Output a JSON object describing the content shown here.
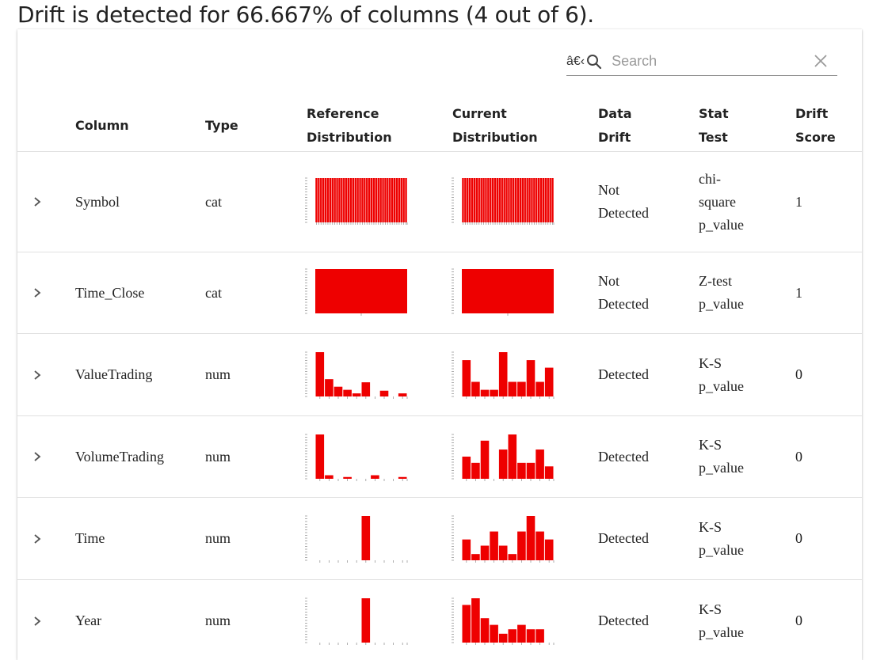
{
  "headline": "Drift is detected for 66.667% of columns (4 out of 6).",
  "search": {
    "prefix": "â€‹",
    "placeholder": "Search"
  },
  "headers": {
    "column": "Column",
    "type": "Type",
    "ref_line1": "Reference",
    "ref_line2": "Distribution",
    "cur_line1": "Current",
    "cur_line2": "Distribution",
    "drift_line1": "Data",
    "drift_line2": "Drift",
    "stat_line1": "Stat",
    "stat_line2": "Test",
    "score_line1": "Drift",
    "score_line2": "Score"
  },
  "accent_color": "#ee0000",
  "rows": [
    {
      "column": "Symbol",
      "type": "cat",
      "drift_l1": "Not",
      "drift_l2": "Detected",
      "stat_l1": "chi-",
      "stat_l2": "square",
      "stat_l3": "p_value",
      "score": "1",
      "ref": {
        "kind": "bars-dense",
        "values": [
          1,
          1,
          1,
          1,
          1,
          1,
          1,
          1,
          1,
          1,
          1,
          1,
          1,
          1,
          1,
          1,
          1,
          1,
          1,
          1,
          1,
          1,
          1,
          1,
          1,
          1,
          1,
          1,
          1,
          1,
          1,
          1,
          1,
          1,
          1,
          1,
          1,
          1,
          1,
          1
        ]
      },
      "cur": {
        "kind": "bars-dense",
        "values": [
          1,
          1,
          1,
          1,
          1,
          1,
          1,
          1,
          1,
          1,
          1,
          1,
          1,
          1,
          1,
          1,
          1,
          1,
          1,
          1,
          1,
          1,
          1,
          1,
          1,
          1,
          1,
          1,
          1,
          1,
          1,
          1,
          1,
          1,
          1,
          1,
          1,
          1,
          1,
          1
        ]
      }
    },
    {
      "column": "Time_Close",
      "type": "cat",
      "drift_l1": "Not",
      "drift_l2": "Detected",
      "stat_l1": "Z-test",
      "stat_l2": "p_value",
      "stat_l3": "",
      "score": "1",
      "ref": {
        "kind": "block",
        "values": [
          1
        ]
      },
      "cur": {
        "kind": "block",
        "values": [
          1
        ]
      }
    },
    {
      "column": "ValueTrading",
      "type": "num",
      "drift_l1": "Detected",
      "drift_l2": "",
      "stat_l1": "K-S",
      "stat_l2": "p_value",
      "stat_l3": "",
      "score": "0",
      "ref": {
        "kind": "hist",
        "values": [
          1.0,
          0.39,
          0.22,
          0.15,
          0.07,
          0.32,
          0,
          0.13,
          0,
          0.07
        ]
      },
      "cur": {
        "kind": "hist",
        "values": [
          0.82,
          0.33,
          0.15,
          0.15,
          1.0,
          0.33,
          0.33,
          0.82,
          0.33,
          0.65
        ]
      }
    },
    {
      "column": "VolumeTrading",
      "type": "num",
      "drift_l1": "Detected",
      "drift_l2": "",
      "stat_l1": "K-S",
      "stat_l2": "p_value",
      "stat_l3": "",
      "score": "0",
      "ref": {
        "kind": "hist",
        "values": [
          1.0,
          0.08,
          0,
          0.04,
          0,
          0,
          0.08,
          0,
          0,
          0.04
        ]
      },
      "cur": {
        "kind": "hist",
        "values": [
          0.5,
          0.36,
          0.86,
          0,
          0.66,
          1.0,
          0.36,
          0.36,
          0.66,
          0.28
        ]
      }
    },
    {
      "column": "Time",
      "type": "num",
      "drift_l1": "Detected",
      "drift_l2": "",
      "stat_l1": "K-S",
      "stat_l2": "p_value",
      "stat_l3": "",
      "score": "0",
      "ref": {
        "kind": "hist",
        "values": [
          0,
          0,
          0,
          0,
          0,
          1.0,
          0,
          0,
          0,
          0
        ]
      },
      "cur": {
        "kind": "hist",
        "values": [
          0.47,
          0.14,
          0.33,
          0.65,
          0.33,
          0.14,
          0.65,
          1.0,
          0.65,
          0.47
        ]
      }
    },
    {
      "column": "Year",
      "type": "num",
      "drift_l1": "Detected",
      "drift_l2": "",
      "stat_l1": "K-S",
      "stat_l2": "p_value",
      "stat_l3": "",
      "score": "0",
      "ref": {
        "kind": "hist",
        "values": [
          0,
          0,
          0,
          0,
          0,
          1.0,
          0,
          0,
          0,
          0
        ]
      },
      "cur": {
        "kind": "hist",
        "values": [
          0.85,
          1.0,
          0.55,
          0.4,
          0.2,
          0.3,
          0.4,
          0.3,
          0.3,
          0
        ]
      }
    }
  ]
}
